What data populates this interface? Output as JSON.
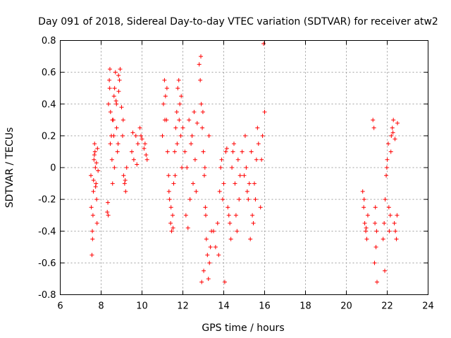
{
  "chart_data": {
    "type": "scatter",
    "title": "Day 091 of 2018, Sidereal Day-to-day VTEC variation (SDTVAR) for receiver atw2",
    "xlabel": "GPS time / hours",
    "ylabel": "SDTVAR / TECUs",
    "xlim": [
      6,
      24
    ],
    "ylim": [
      -0.8,
      0.8
    ],
    "xticks": [
      6,
      8,
      10,
      12,
      14,
      16,
      18,
      20,
      22,
      24
    ],
    "yticks": [
      -0.8,
      -0.6,
      -0.4,
      -0.2,
      0,
      0.2,
      0.4,
      0.6,
      0.8
    ],
    "xtick_labels": [
      "6",
      "8",
      "10",
      "12",
      "14",
      "16",
      "18",
      "20",
      "22",
      "24"
    ],
    "ytick_labels": [
      "-0.8",
      "-0.6",
      "-0.4",
      "-0.2",
      "0",
      "0.2",
      "0.4",
      "0.6",
      "0.8"
    ],
    "grid": true,
    "marker": "+",
    "color": "#ff0000",
    "series": [
      {
        "name": "SDTVAR",
        "x": [
          7.5,
          7.55,
          7.58,
          7.6,
          7.62,
          7.65,
          7.68,
          7.7,
          7.72,
          7.75,
          7.78,
          7.8,
          7.82,
          7.85,
          7.52,
          7.57,
          7.63,
          7.67,
          7.73,
          7.77,
          8.3,
          8.33,
          8.36,
          8.4,
          8.43,
          8.46,
          8.5,
          8.53,
          8.56,
          8.6,
          8.63,
          8.66,
          8.7,
          8.73,
          8.76,
          8.8,
          8.83,
          8.86,
          8.9,
          8.93,
          8.35,
          8.45,
          8.55,
          8.65,
          8.75,
          8.85,
          8.42,
          8.62,
          9.0,
          9.05,
          9.1,
          9.15,
          9.2,
          9.25,
          9.08,
          9.18,
          9.5,
          9.6,
          9.7,
          9.8,
          9.9,
          10.0,
          10.1,
          10.2,
          10.25,
          9.55,
          9.75,
          9.95,
          10.15,
          11.0,
          11.05,
          11.1,
          11.15,
          11.2,
          11.25,
          11.3,
          11.35,
          11.4,
          11.45,
          11.5,
          11.55,
          11.6,
          11.65,
          11.7,
          11.75,
          11.8,
          11.85,
          11.9,
          11.95,
          11.12,
          11.32,
          11.52,
          11.72,
          11.92,
          11.22,
          11.42,
          11.62,
          11.82,
          12.0,
          12.1,
          12.2,
          12.3,
          12.4,
          12.5,
          12.6,
          12.7,
          12.15,
          12.35,
          12.55,
          12.25,
          12.45,
          12.65,
          12.8,
          12.85,
          12.9,
          12.95,
          13.0,
          13.05,
          13.1,
          13.15,
          13.2,
          13.25,
          13.3,
          13.35,
          13.4,
          12.88,
          12.98,
          13.08,
          12.92,
          13.02,
          13.12,
          13.28,
          13.5,
          13.6,
          13.7,
          13.8,
          13.9,
          14.0,
          14.1,
          14.2,
          14.3,
          14.4,
          14.5,
          14.6,
          14.7,
          14.8,
          13.75,
          13.95,
          14.15,
          14.35,
          14.55,
          14.75,
          13.85,
          14.05,
          14.25,
          14.45,
          14.65,
          14.9,
          15.0,
          15.1,
          15.2,
          15.3,
          15.4,
          15.5,
          15.6,
          15.7,
          15.8,
          15.9,
          16.0,
          15.05,
          15.25,
          15.45,
          15.65,
          15.85,
          15.15,
          15.35,
          15.55,
          15.95,
          20.8,
          20.85,
          20.9,
          20.95,
          21.0,
          21.05,
          20.87,
          20.97,
          21.3,
          21.35,
          21.4,
          21.45,
          21.5,
          21.38,
          21.48,
          21.42,
          21.8,
          21.85,
          21.9,
          21.95,
          22.0,
          22.05,
          22.1,
          22.15,
          22.2,
          22.25,
          22.3,
          22.35,
          22.4,
          22.45,
          22.5,
          21.88,
          21.98,
          22.08,
          22.18,
          22.28,
          22.38,
          22.48
        ],
        "y": [
          -0.05,
          -0.55,
          -0.45,
          -0.3,
          -0.15,
          0.05,
          0.15,
          0.1,
          0.0,
          -0.1,
          -0.2,
          -0.35,
          0.12,
          -0.02,
          -0.25,
          -0.4,
          -0.08,
          0.08,
          -0.12,
          0.03,
          -0.28,
          -0.22,
          0.4,
          0.55,
          0.62,
          0.35,
          0.2,
          0.05,
          -0.1,
          0.3,
          0.45,
          0.5,
          0.6,
          0.42,
          0.25,
          0.1,
          0.15,
          0.48,
          0.55,
          0.62,
          -0.3,
          0.15,
          0.3,
          0.0,
          0.4,
          0.58,
          0.5,
          0.2,
          0.38,
          0.2,
          -0.05,
          -0.1,
          -0.15,
          0.0,
          0.3,
          -0.08,
          0.1,
          0.05,
          0.2,
          0.15,
          0.25,
          0.18,
          0.12,
          0.08,
          0.05,
          0.22,
          0.02,
          0.2,
          0.15,
          0.2,
          0.4,
          0.55,
          0.45,
          0.3,
          0.1,
          -0.05,
          -0.2,
          -0.35,
          -0.4,
          -0.3,
          -0.1,
          0.1,
          0.25,
          0.35,
          0.5,
          0.55,
          0.4,
          0.2,
          0.0,
          0.3,
          -0.15,
          -0.38,
          0.15,
          0.45,
          0.5,
          -0.25,
          -0.05,
          0.3,
          0.25,
          0.1,
          0.0,
          0.3,
          0.15,
          -0.1,
          0.05,
          0.28,
          -0.3,
          -0.2,
          0.35,
          -0.38,
          0.2,
          -0.15,
          0.65,
          0.55,
          0.4,
          0.25,
          0.1,
          -0.05,
          -0.25,
          -0.45,
          -0.55,
          -0.7,
          -0.6,
          -0.5,
          -0.4,
          0.7,
          0.35,
          0.0,
          -0.72,
          -0.65,
          -0.3,
          0.2,
          -0.4,
          -0.5,
          -0.35,
          -0.15,
          0.05,
          -0.1,
          0.1,
          -0.25,
          -0.35,
          0.0,
          0.15,
          -0.3,
          0.05,
          -0.05,
          -0.55,
          -0.2,
          0.12,
          -0.45,
          -0.1,
          -0.2,
          0.0,
          -0.72,
          -0.3,
          0.1,
          -0.4,
          0.1,
          -0.05,
          0.0,
          -0.2,
          -0.45,
          -0.3,
          -0.1,
          0.05,
          0.15,
          -0.25,
          0.2,
          0.35,
          0.2,
          -0.1,
          -0.35,
          0.25,
          0.05,
          -0.15,
          0.1,
          -0.2,
          0.78,
          -0.15,
          -0.25,
          -0.35,
          -0.4,
          -0.45,
          -0.3,
          -0.2,
          -0.38,
          0.3,
          0.25,
          -0.35,
          -0.5,
          -0.72,
          -0.6,
          -0.4,
          -0.25,
          -0.45,
          -0.35,
          -0.2,
          -0.05,
          0.05,
          0.15,
          -0.4,
          -0.3,
          0.2,
          0.25,
          0.3,
          -0.35,
          -0.4,
          -0.45,
          0.28,
          -0.65,
          0.0,
          -0.25,
          0.1,
          0.22,
          0.18,
          -0.3
        ]
      }
    ]
  }
}
